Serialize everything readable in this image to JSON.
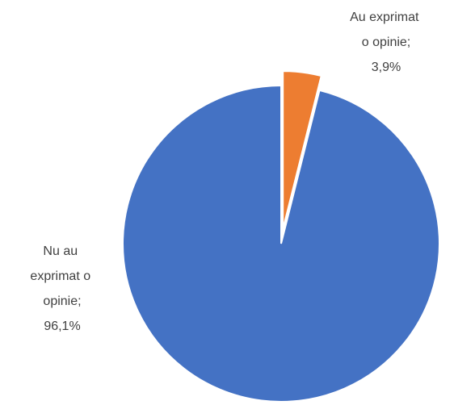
{
  "chart_data": {
    "type": "pie",
    "categories": [
      "Au exprimat o opinie",
      "Nu au exprimat o opinie"
    ],
    "values": [
      3.9,
      96.1
    ],
    "value_labels": [
      "3,9%",
      "96,1%"
    ],
    "label_separator": ";",
    "colors": [
      "#ed7d31",
      "#4472c4"
    ]
  }
}
